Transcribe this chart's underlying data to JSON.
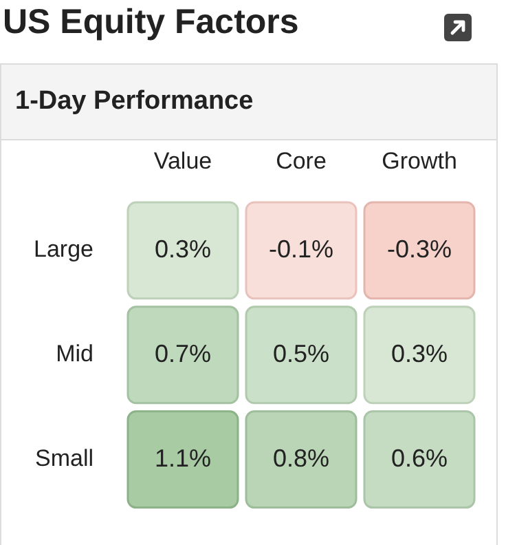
{
  "chart_data": {
    "type": "heatmap",
    "title": "US Equity Factors",
    "subtitle": "1-Day Performance",
    "categories": [
      "Value",
      "Core",
      "Growth"
    ],
    "y_categories": [
      "Large",
      "Mid",
      "Small"
    ],
    "cells": [
      [
        0.3,
        -0.1,
        -0.3
      ],
      [
        0.7,
        0.5,
        0.3
      ],
      [
        1.1,
        0.8,
        0.6
      ]
    ],
    "cell_labels": [
      [
        "0.3%",
        "-0.1%",
        "-0.3%"
      ],
      [
        "0.7%",
        "0.5%",
        "0.3%"
      ],
      [
        "1.1%",
        "0.8%",
        "0.6%"
      ]
    ]
  }
}
